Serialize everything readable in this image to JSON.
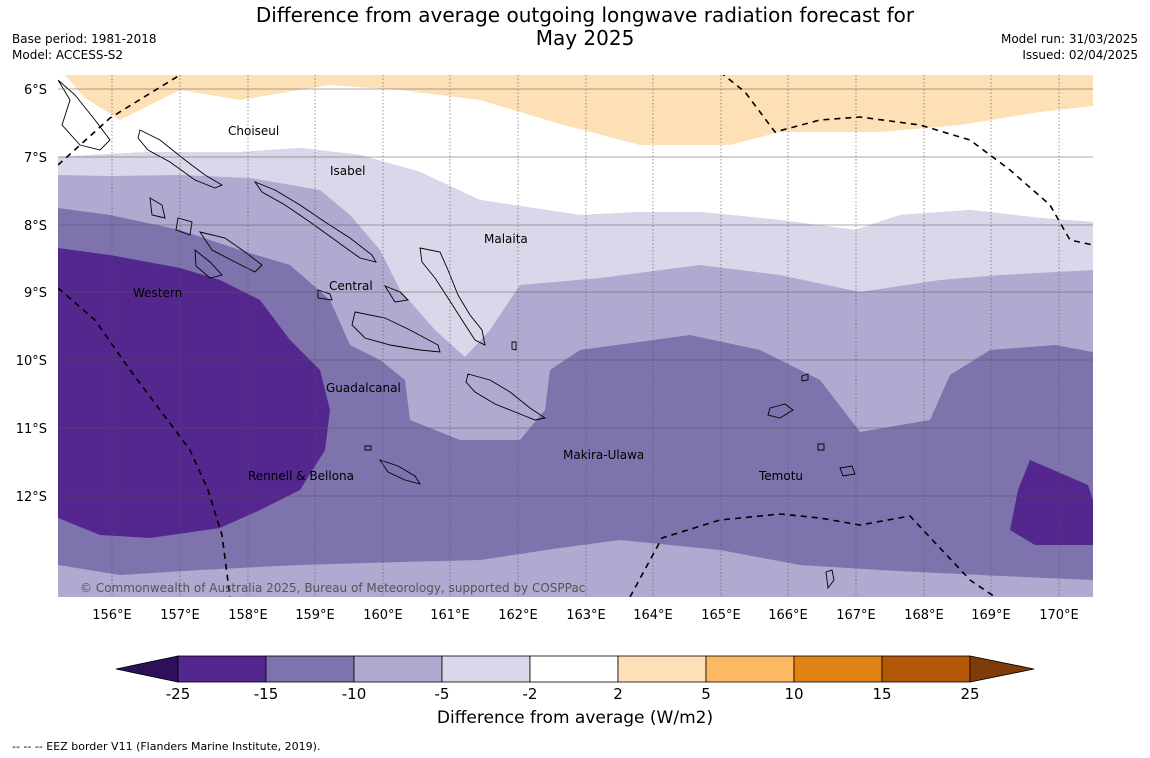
{
  "title": "Difference from average outgoing longwave radiation forecast for May 2025",
  "meta_left": {
    "base_period": "Base period: 1981-2018",
    "model": "Model: ACCESS-S2"
  },
  "meta_right": {
    "model_run": "Model run: 31/03/2025",
    "issued": "Issued: 02/04/2025"
  },
  "map": {
    "lat_labels": [
      "6°S",
      "7°S",
      "8°S",
      "9°S",
      "10°S",
      "11°S",
      "12°S"
    ],
    "lon_labels": [
      "156°E",
      "157°E",
      "158°E",
      "159°E",
      "160°E",
      "161°E",
      "162°E",
      "163°E",
      "164°E",
      "165°E",
      "166°E",
      "167°E",
      "168°E",
      "169°E",
      "170°E"
    ],
    "regions": [
      "Choiseul",
      "Isabel",
      "Malaita",
      "Western",
      "Central",
      "Guadalcanal",
      "Makira-Ulawa",
      "Rennell & Bellona",
      "Temotu"
    ],
    "copyright": "© Commonwealth of Australia 2025, Bureau of Meteorology, supported by COSPPac"
  },
  "colorbar": {
    "ticks": [
      "-25",
      "-15",
      "-10",
      "-5",
      "-2",
      "2",
      "5",
      "10",
      "15",
      "25"
    ],
    "colors": [
      "#2e0f59",
      "#54278f",
      "#7f73ad",
      "#b0a9d0",
      "#d9d8ea",
      "#ffffff",
      "#fee0b6",
      "#fdb863",
      "#e08214",
      "#b35806",
      "#7f3b08"
    ],
    "title": "Difference from average (W/m2)"
  },
  "footnote": "--  --  -- EEZ border V11 (Flanders Marine Institute, 2019)."
}
